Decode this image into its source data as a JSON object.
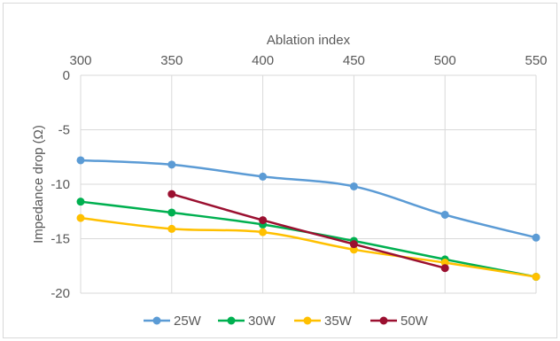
{
  "chart_data": {
    "type": "line",
    "title": "",
    "xlabel": "Ablation index",
    "ylabel": "Impedance drop (Ω)",
    "xlim": [
      300,
      550
    ],
    "ylim": [
      -20,
      0
    ],
    "x_ticks": [
      "300",
      "350",
      "400",
      "450",
      "500",
      "550"
    ],
    "y_ticks": [
      "0",
      "-5",
      "-10",
      "-15",
      "-20"
    ],
    "x_axis_position": "top",
    "grid": true,
    "legend_position": "bottom",
    "series": [
      {
        "name": "25W",
        "color": "#5b9bd5",
        "x": [
          300,
          350,
          400,
          450,
          500,
          550
        ],
        "values": [
          -7.8,
          -8.2,
          -9.3,
          -10.2,
          -12.8,
          -14.9
        ]
      },
      {
        "name": "30W",
        "color": "#00b050",
        "x": [
          300,
          350,
          400,
          450,
          500,
          550
        ],
        "values": [
          -11.6,
          -12.6,
          -13.7,
          -15.2,
          -16.9,
          -18.5
        ]
      },
      {
        "name": "35W",
        "color": "#ffc000",
        "x": [
          300,
          350,
          400,
          450,
          500,
          550
        ],
        "values": [
          -13.1,
          -14.1,
          -14.4,
          -16.0,
          -17.2,
          -18.5
        ]
      },
      {
        "name": "50W",
        "color": "#9b1030",
        "x": [
          350,
          400,
          450,
          500
        ],
        "values": [
          -10.9,
          -13.3,
          -15.5,
          -17.7
        ]
      }
    ]
  }
}
